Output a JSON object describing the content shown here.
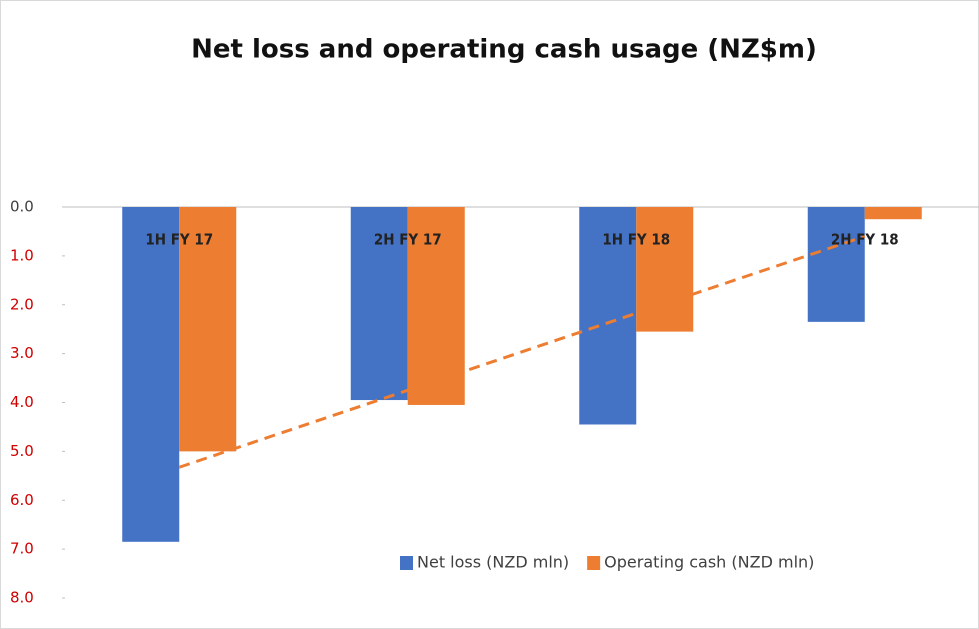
{
  "chart_data": {
    "type": "bar",
    "title": "Net loss and operating cash usage (NZ$m)",
    "categories": [
      "1H FY 17",
      "2H FY 17",
      "1H FY 18",
      "2H FY 18"
    ],
    "series": [
      {
        "name": "Net loss (NZD mln)",
        "color": "#4472c4",
        "values": [
          6.85,
          3.95,
          4.45,
          2.35
        ]
      },
      {
        "name": "Operating cash (NZD mln)",
        "color": "#ed7d31",
        "values": [
          5.0,
          4.05,
          2.55,
          0.25
        ]
      }
    ],
    "ylim": [
      0,
      8
    ],
    "y_inverted": true,
    "yticks": [
      {
        "value": 0,
        "label": "0.0"
      },
      {
        "value": 1,
        "label": "1.0"
      },
      {
        "value": 2,
        "label": "2.0"
      },
      {
        "value": 3,
        "label": "3.0"
      },
      {
        "value": 4,
        "label": "4.0"
      },
      {
        "value": 5,
        "label": "5.0"
      },
      {
        "value": 6,
        "label": "6.0"
      },
      {
        "value": 7,
        "label": "7.0"
      },
      {
        "value": 8,
        "label": "8.0"
      }
    ],
    "trendline_series": 1,
    "legend": "bottom-right"
  }
}
